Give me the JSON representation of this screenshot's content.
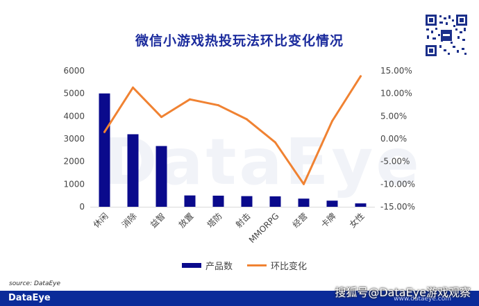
{
  "chart_data": {
    "type": "bar",
    "title": "微信小游戏热投玩法环比变化情况",
    "categories": [
      "休闲",
      "消除",
      "益智",
      "放置",
      "塔防",
      "射击",
      "MMORPG",
      "经营",
      "卡牌",
      "女性"
    ],
    "series": [
      {
        "name": "产品数",
        "type": "bar",
        "axis": "left",
        "color": "#0a0a8c",
        "values": [
          5000,
          3200,
          2680,
          500,
          490,
          470,
          460,
          360,
          270,
          150
        ]
      },
      {
        "name": "环比变化",
        "type": "line",
        "axis": "right",
        "color": "#f08232",
        "values": [
          1.5,
          11.3,
          4.8,
          8.7,
          7.4,
          4.3,
          -0.8,
          -10.0,
          3.9,
          13.8
        ]
      }
    ],
    "left_axis": {
      "min": 0,
      "max": 6000,
      "ticks": [
        "0",
        "1000",
        "2000",
        "3000",
        "4000",
        "5000",
        "6000"
      ],
      "tick_values": [
        0,
        1000,
        2000,
        3000,
        4000,
        5000,
        6000
      ]
    },
    "right_axis": {
      "min": -15,
      "max": 15,
      "ticks": [
        "-15.00%",
        "-10.00%",
        "-5.00%",
        "0.00%",
        "5.00%",
        "10.00%",
        "15.00%"
      ],
      "tick_values": [
        -15,
        -10,
        -5,
        0,
        5,
        10,
        15
      ]
    },
    "grid": false,
    "legend_position": "bottom"
  },
  "source": "source: DataEye",
  "watermark": "DataEye",
  "footer": {
    "brand": "DataEye",
    "site": "www.dataeye.com",
    "credit": "搜狐号@DataEye游戏观察"
  }
}
